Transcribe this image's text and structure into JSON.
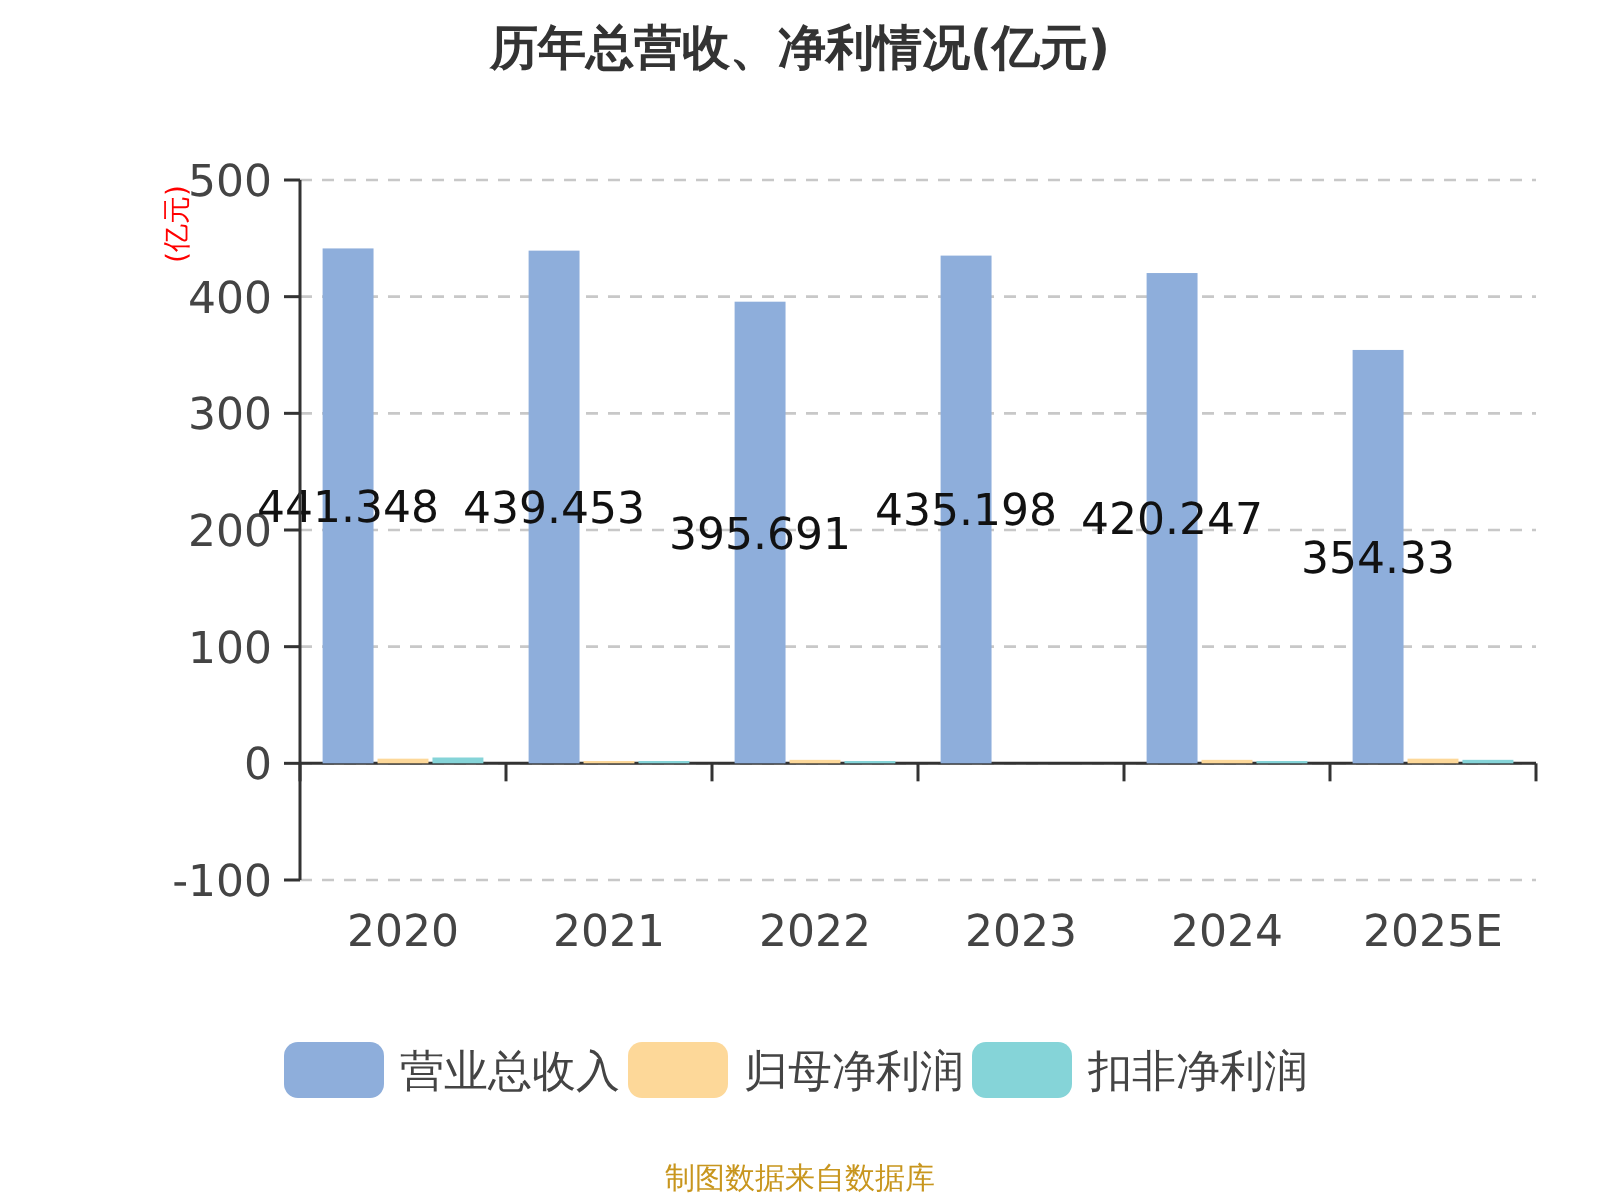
{
  "chart_data": {
    "type": "bar",
    "title": "历年总营收、净利情况(亿元)",
    "ylabel": "(亿元)",
    "categories": [
      "2020",
      "2021",
      "2022",
      "2023",
      "2024",
      "2025E"
    ],
    "series": [
      {
        "name": "营业总收入",
        "color": "#8eaedb",
        "values": [
          441.348,
          439.453,
          395.691,
          435.198,
          420.247,
          354.33
        ],
        "value_labels": [
          "441.348",
          "439.453",
          "395.691",
          "435.198",
          "420.247",
          "354.33"
        ]
      },
      {
        "name": "归母净利润",
        "color": "#fdd899",
        "values": [
          4,
          2,
          3,
          null,
          3,
          4
        ]
      },
      {
        "name": "扣非净利润",
        "color": "#85d4d8",
        "values": [
          5,
          2,
          2,
          null,
          2,
          3
        ]
      }
    ],
    "ylim": [
      -100,
      500
    ],
    "yticks": [
      -100,
      0,
      100,
      200,
      300,
      400,
      500
    ],
    "grid": "y",
    "legend": "bottom",
    "annotations": [
      "制图数据来自数据库"
    ]
  }
}
